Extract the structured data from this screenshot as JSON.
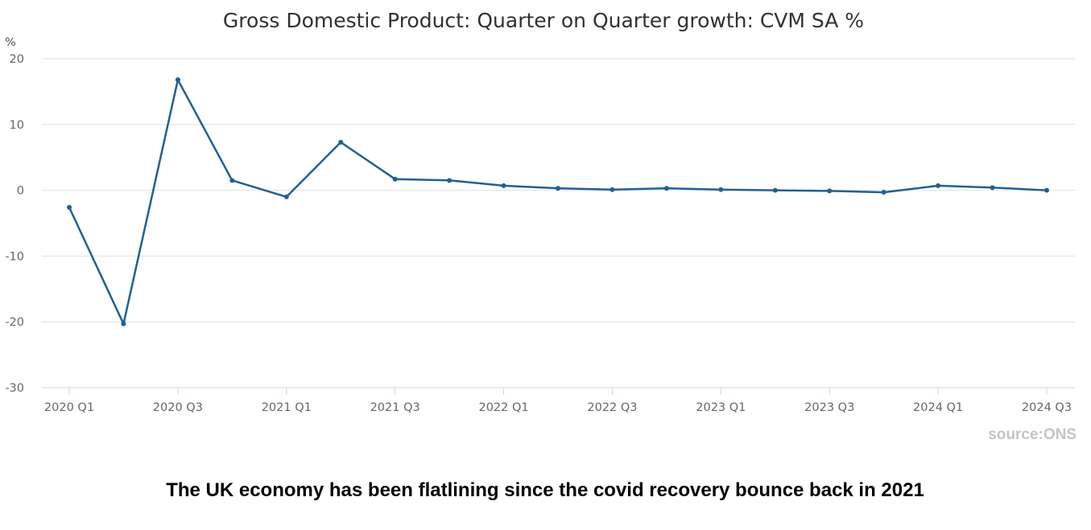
{
  "chart_data": {
    "type": "line",
    "title": "Gross Domestic Product: Quarter on Quarter growth: CVM SA %",
    "ylabel": "%",
    "xlabel": "",
    "ylim": [
      -30,
      20
    ],
    "yticks": [
      20,
      10,
      0,
      -10,
      -20,
      -30
    ],
    "ytick_labels": [
      "20",
      "10",
      "0",
      "-10",
      "-20",
      "-30"
    ],
    "grid": true,
    "categories": [
      "2020 Q1",
      "2020 Q2",
      "2020 Q3",
      "2020 Q4",
      "2021 Q1",
      "2021 Q2",
      "2021 Q3",
      "2021 Q4",
      "2022 Q1",
      "2022 Q2",
      "2022 Q3",
      "2022 Q4",
      "2023 Q1",
      "2023 Q2",
      "2023 Q3",
      "2023 Q4",
      "2024 Q1",
      "2024 Q2",
      "2024 Q3"
    ],
    "xtick_labels": [
      "2020 Q1",
      "2020 Q3",
      "2021 Q1",
      "2021 Q3",
      "2022 Q1",
      "2022 Q3",
      "2023 Q1",
      "2023 Q3",
      "2024 Q1",
      "2024 Q3"
    ],
    "series": [
      {
        "name": "Gross Domestic Product: Quarter on Quarter growth: CVM SA %",
        "color": "#206095",
        "values": [
          -2.6,
          -20.3,
          16.8,
          1.5,
          -1.0,
          7.3,
          1.7,
          1.5,
          0.7,
          0.3,
          0.1,
          0.3,
          0.1,
          0.0,
          -0.1,
          -0.3,
          0.7,
          0.4,
          0.0
        ]
      }
    ]
  },
  "source": "source:ONS",
  "caption": "The UK economy has been flatlining since the covid recovery bounce back in 2021",
  "colors": {
    "line": "#206095",
    "grid": "#e0e0e0",
    "axis": "#ccd6eb",
    "tick_text": "#666666",
    "source": "#c4c4c4"
  }
}
